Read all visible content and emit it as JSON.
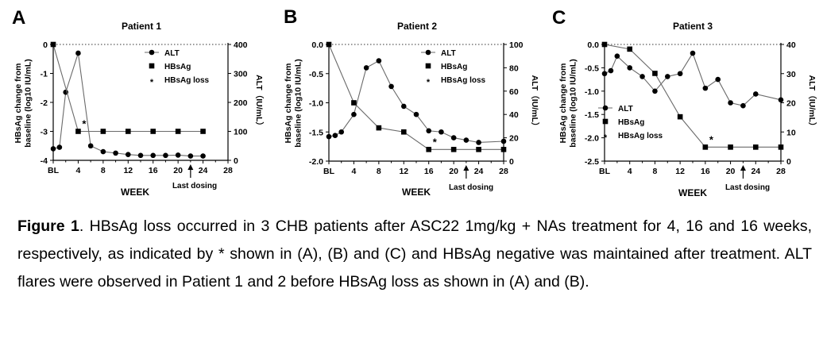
{
  "chart_data": [
    {
      "type": "line",
      "panel_label": "A",
      "title": "Patient 1",
      "xlabel": "WEEK",
      "ylabel_left": [
        "HBsAg change from",
        "baseline (log10 IU/mL)"
      ],
      "ylabel_right": "ALT（IU/mL）",
      "x_ticks": [
        "BL",
        "4",
        "8",
        "12",
        "16",
        "20",
        "24",
        "28"
      ],
      "x_tick_values": [
        0,
        4,
        8,
        12,
        16,
        20,
        24,
        28
      ],
      "xlim": [
        0,
        28
      ],
      "ylim_left": [
        -4,
        0
      ],
      "ylim_right": [
        0,
        400
      ],
      "y_ticks_left": [
        "0",
        "-1",
        "-2",
        "-3",
        "-4"
      ],
      "y_ticks_right": [
        "0",
        "100",
        "200",
        "300",
        "400"
      ],
      "legend": [
        "ALT",
        "HBsAg",
        "HBsAg loss"
      ],
      "legend_position": "top-right",
      "last_dosing_label": "Last dosing",
      "last_dosing_week": 22,
      "loss_marker": "*",
      "loss_week": 4,
      "loss_value": -3,
      "series": [
        {
          "name": "ALT",
          "axis": "right",
          "marker": "circle",
          "x": [
            0,
            1,
            2,
            4,
            6,
            8,
            10,
            12,
            14,
            16,
            18,
            20,
            22,
            24
          ],
          "values": [
            40,
            45,
            235,
            370,
            50,
            30,
            25,
            20,
            17,
            17,
            17,
            18,
            15,
            15
          ]
        },
        {
          "name": "HBsAg",
          "axis": "left",
          "marker": "square",
          "x": [
            0,
            4,
            8,
            12,
            16,
            20,
            24
          ],
          "values": [
            0,
            -3,
            -3,
            -3,
            -3,
            -3,
            -3
          ]
        }
      ]
    },
    {
      "type": "line",
      "panel_label": "B",
      "title": "Patient 2",
      "xlabel": "WEEK",
      "ylabel_left": [
        "HBsAg change from",
        "baseline (log10 IU/mL)"
      ],
      "ylabel_right": "ALT（IU/mL）",
      "x_ticks": [
        "BL",
        "4",
        "8",
        "12",
        "16",
        "20",
        "24",
        "28"
      ],
      "x_tick_values": [
        0,
        4,
        8,
        12,
        16,
        20,
        24,
        28
      ],
      "xlim": [
        0,
        28
      ],
      "ylim_left": [
        -2.0,
        0.0
      ],
      "ylim_right": [
        0,
        100
      ],
      "y_ticks_left": [
        "0.0",
        "-0.5",
        "-1.0",
        "-1.5",
        "-2.0"
      ],
      "y_ticks_right": [
        "0",
        "20",
        "40",
        "60",
        "80",
        "100"
      ],
      "legend": [
        "ALT",
        "HBsAg",
        "HBsAg loss"
      ],
      "legend_position": "top-right",
      "last_dosing_label": "Last dosing",
      "last_dosing_week": 22,
      "loss_marker": "*",
      "loss_week": 16,
      "loss_value": -1.8,
      "series": [
        {
          "name": "ALT",
          "axis": "right",
          "marker": "circle",
          "x": [
            0,
            1,
            2,
            4,
            6,
            8,
            10,
            12,
            14,
            16,
            18,
            20,
            22,
            24,
            28
          ],
          "values": [
            21,
            22,
            25,
            40,
            80,
            86,
            64,
            47,
            40,
            26,
            25,
            20,
            18,
            16,
            17
          ]
        },
        {
          "name": "HBsAg",
          "axis": "left",
          "marker": "square",
          "x": [
            0,
            4,
            8,
            12,
            16,
            20,
            24,
            28
          ],
          "values": [
            0,
            -1.0,
            -1.43,
            -1.5,
            -1.8,
            -1.8,
            -1.8,
            -1.8
          ]
        }
      ]
    },
    {
      "type": "line",
      "panel_label": "C",
      "title": "Patient 3",
      "xlabel": "WEEK",
      "ylabel_left": [
        "HBsAg change from",
        "baseline (log10 IU/mL)"
      ],
      "ylabel_right": "ALT（IU/mL）",
      "x_ticks": [
        "BL",
        "4",
        "8",
        "12",
        "16",
        "20",
        "24",
        "28"
      ],
      "x_tick_values": [
        0,
        4,
        8,
        12,
        16,
        20,
        24,
        28
      ],
      "xlim": [
        0,
        28
      ],
      "ylim_left": [
        -2.5,
        0.0
      ],
      "ylim_right": [
        0,
        40
      ],
      "y_ticks_left": [
        "0.0",
        "-0.5",
        "-1.0",
        "-1.5",
        "-2.0",
        "-2.5"
      ],
      "y_ticks_right": [
        "0",
        "10",
        "20",
        "30",
        "40"
      ],
      "legend": [
        "ALT",
        "HBsAg",
        "HBsAg loss"
      ],
      "legend_position": "bottom-left",
      "last_dosing_label": "Last dosing",
      "last_dosing_week": 22,
      "loss_marker": "*",
      "loss_week": 16,
      "loss_value": -2.2,
      "series": [
        {
          "name": "ALT",
          "axis": "right",
          "marker": "circle",
          "x": [
            0,
            1,
            2,
            4,
            6,
            8,
            10,
            12,
            14,
            16,
            18,
            20,
            22,
            24,
            28
          ],
          "values": [
            30,
            31,
            36,
            32,
            29,
            24,
            29,
            30,
            37,
            25,
            28,
            20,
            19,
            23,
            21
          ]
        },
        {
          "name": "HBsAg",
          "axis": "left",
          "marker": "square",
          "x": [
            0,
            4,
            8,
            12,
            16,
            20,
            24,
            28
          ],
          "values": [
            0,
            -0.1,
            -0.62,
            -1.55,
            -2.2,
            -2.2,
            -2.2,
            -2.2
          ]
        }
      ]
    }
  ],
  "caption": {
    "label": "Figure 1",
    "text": ". HBsAg loss occurred in 3 CHB patients after ASC22 1mg/kg + NAs treatment for 4, 16 and 16 weeks, respectively, as indicated by * shown in (A), (B) and (C) and HBsAg negative was maintained after treatment. ALT flares were observed in Patient 1 and 2 before HBsAg loss as shown in (A) and (B)."
  }
}
